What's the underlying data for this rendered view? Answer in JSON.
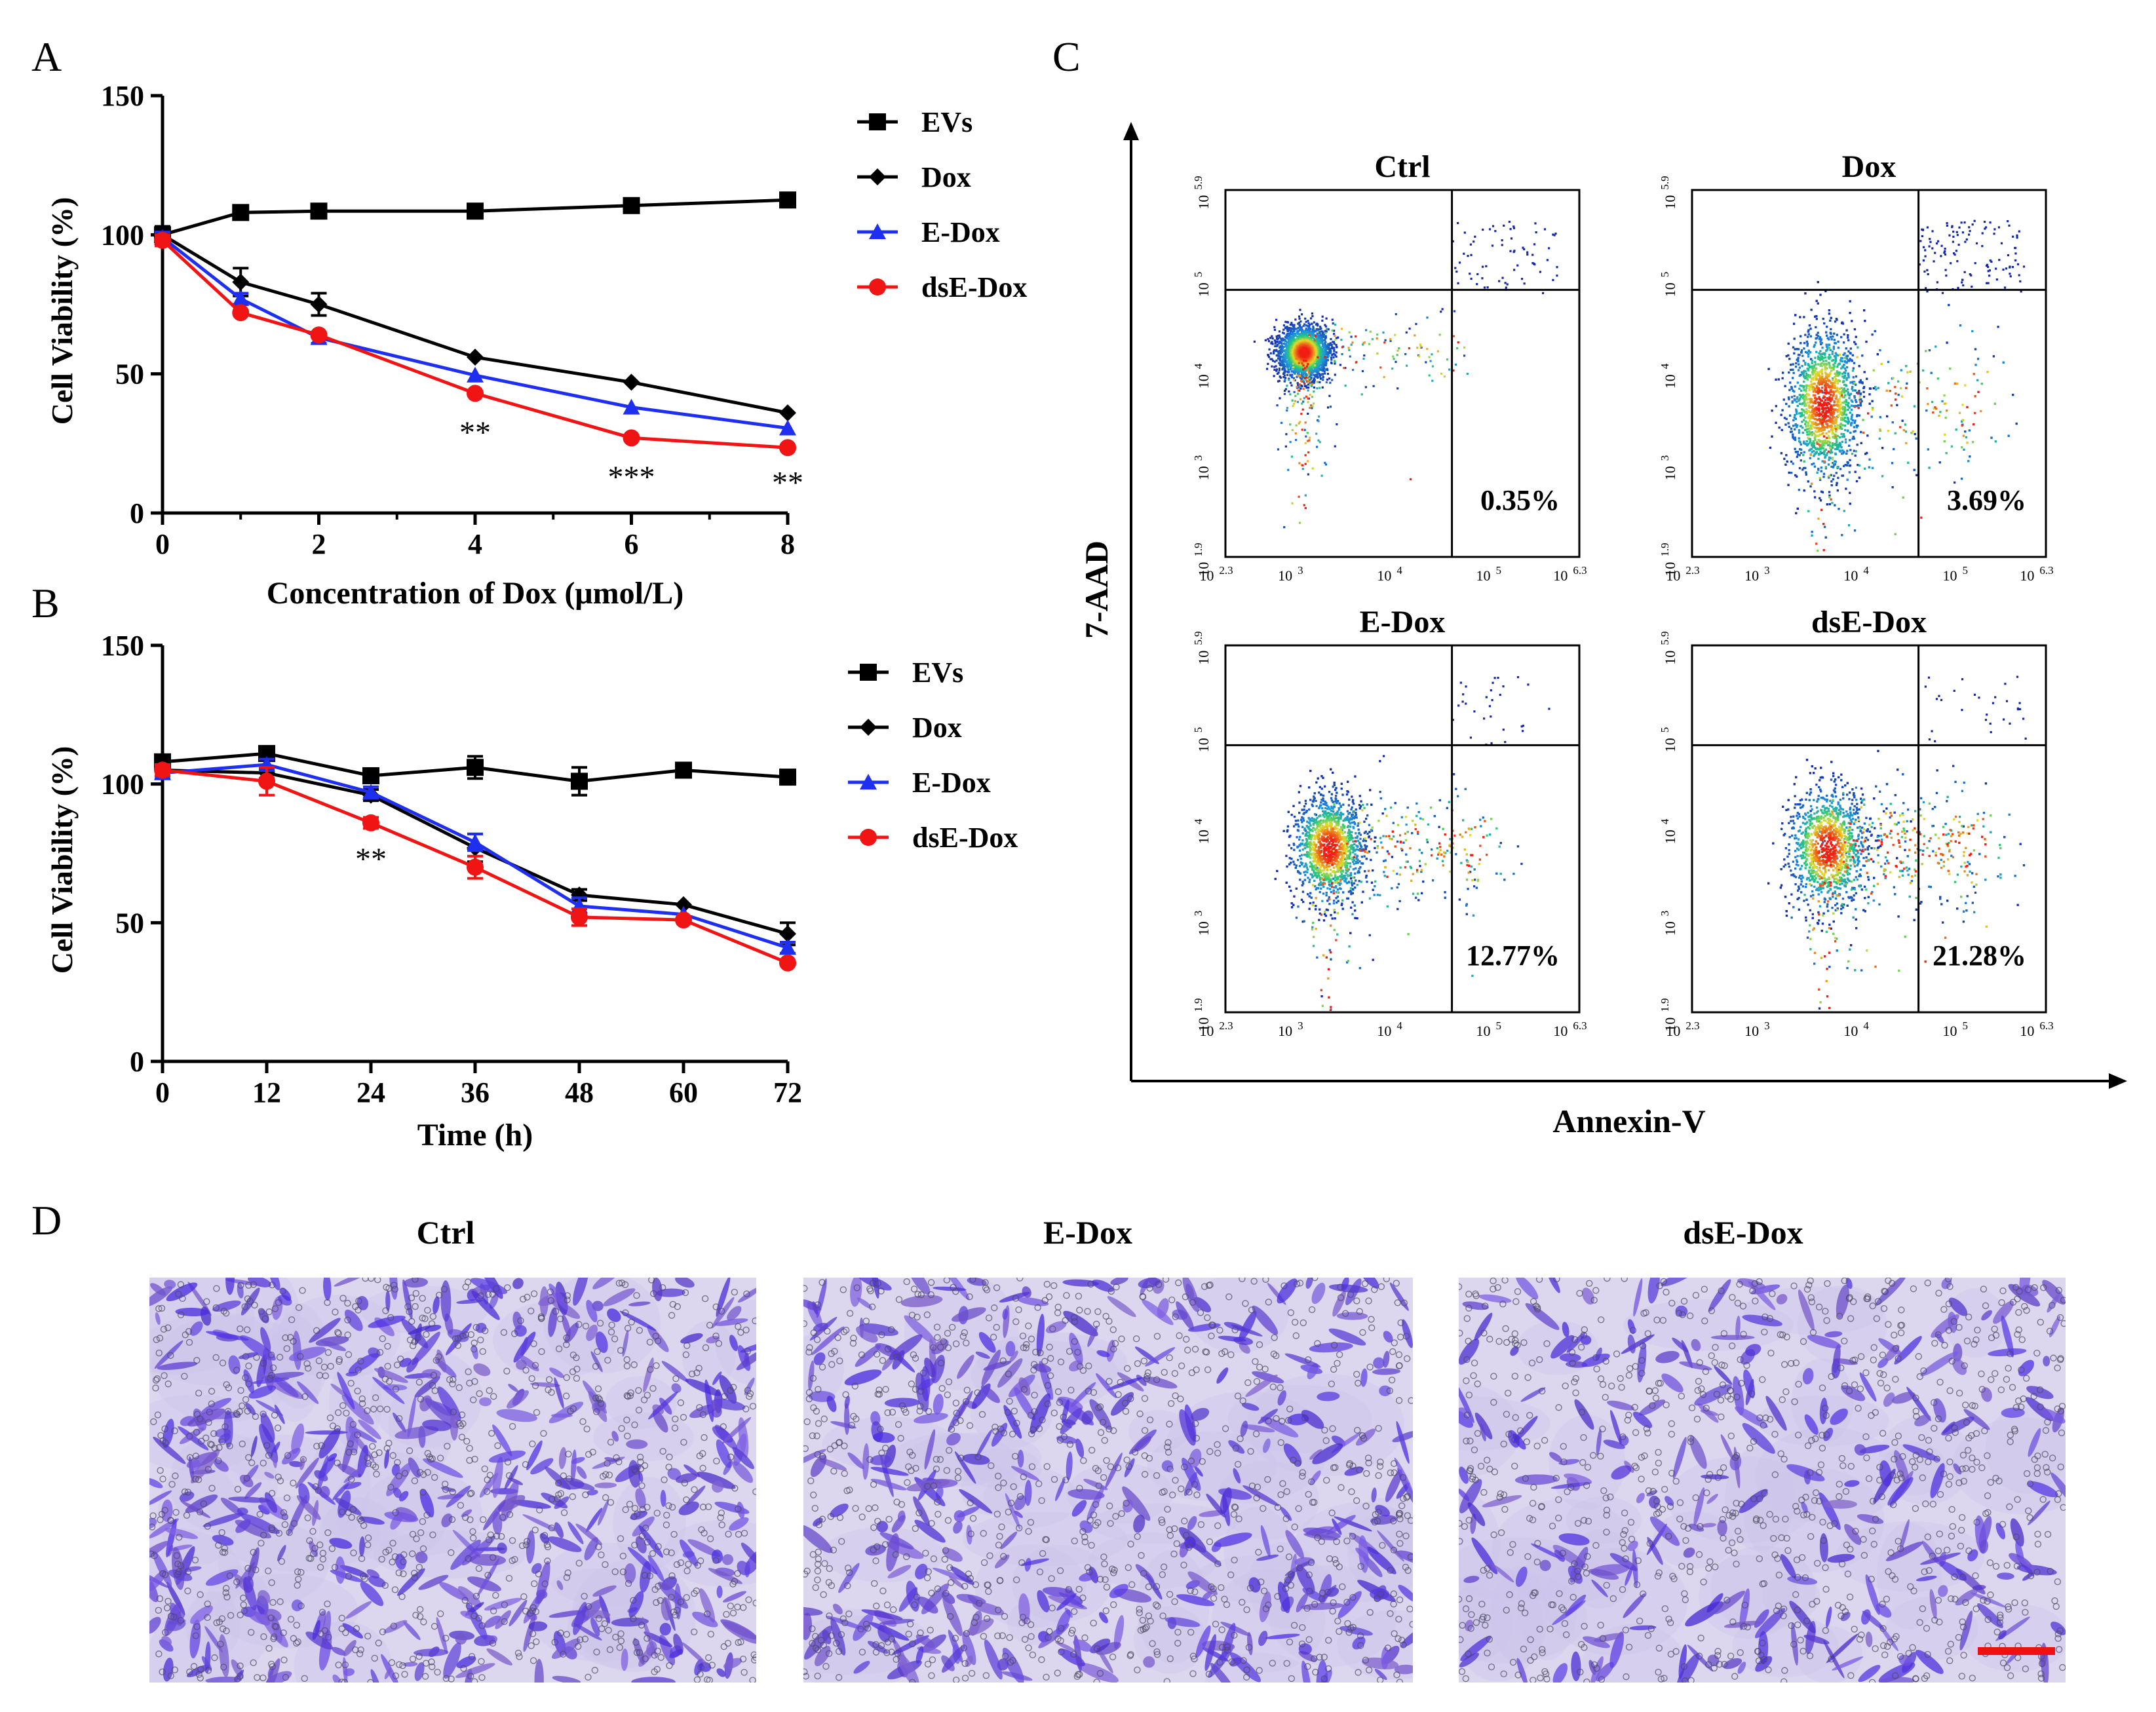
{
  "panel_letters": [
    "A",
    "B",
    "C",
    "D"
  ],
  "colors": {
    "EVs": "#000000",
    "Dox": "#000000",
    "E-Dox": "#1f2ff0",
    "dsE-Dox": "#f01414",
    "scale_bar": "#ee1111"
  },
  "chart_data": [
    {
      "panel": "A",
      "type": "line",
      "xlabel": "Concentration of Dox (μmol/L)",
      "ylabel": "Cell Viability (%)",
      "xlim": [
        0,
        8
      ],
      "ylim": [
        0,
        150
      ],
      "x": [
        0,
        1,
        2,
        4,
        6,
        8
      ],
      "x_ticks": [
        "0",
        "2",
        "4",
        "6",
        "8"
      ],
      "x_tick_values": [
        0,
        2,
        4,
        6,
        8
      ],
      "y_ticks": [
        "0",
        "50",
        "100",
        "150"
      ],
      "y_tick_values": [
        0,
        50,
        100,
        150
      ],
      "series": [
        {
          "name": "EVs",
          "marker": "square",
          "values": [
            100,
            108,
            108.5,
            108.5,
            110.5,
            112.5
          ],
          "err": [
            3,
            2,
            1,
            1,
            1,
            1
          ]
        },
        {
          "name": "Dox",
          "marker": "diamond",
          "values": [
            100,
            83,
            75,
            56,
            47,
            36
          ],
          "err": [
            3,
            5,
            4,
            1,
            1,
            1
          ]
        },
        {
          "name": "E-Dox",
          "marker": "triangle",
          "values": [
            99,
            77,
            63,
            49.5,
            38,
            30.5
          ],
          "err": [
            2,
            2,
            2,
            1,
            1,
            1
          ]
        },
        {
          "name": "dsE-Dox",
          "marker": "circle",
          "values": [
            98,
            72,
            64,
            43,
            27,
            23.5
          ],
          "err": [
            2,
            1,
            1,
            1,
            1,
            1
          ]
        }
      ],
      "annotations": [
        {
          "x": 4,
          "y": 29,
          "text": "**"
        },
        {
          "x": 6,
          "y": 13,
          "text": "***"
        },
        {
          "x": 8,
          "y": 11,
          "text": "**"
        }
      ]
    },
    {
      "panel": "B",
      "type": "line",
      "xlabel": "Time (h)",
      "ylabel": "Cell Viability (%)",
      "xlim": [
        0,
        72
      ],
      "ylim": [
        0,
        150
      ],
      "x": [
        0,
        12,
        24,
        36,
        48,
        60,
        72
      ],
      "x_ticks": [
        "0",
        "12",
        "24",
        "36",
        "48",
        "60",
        "72"
      ],
      "x_tick_values": [
        0,
        12,
        24,
        36,
        48,
        60,
        72
      ],
      "y_ticks": [
        "0",
        "50",
        "100",
        "150"
      ],
      "y_tick_values": [
        0,
        50,
        100,
        150
      ],
      "series": [
        {
          "name": "EVs",
          "marker": "square",
          "values": [
            108,
            111,
            103,
            106,
            101,
            105,
            102.5
          ],
          "err": [
            2,
            2,
            2,
            4,
            5,
            2,
            2
          ]
        },
        {
          "name": "Dox",
          "marker": "diamond",
          "values": [
            105,
            104,
            96,
            77,
            60,
            56.5,
            46
          ],
          "err": [
            2,
            2,
            2,
            5,
            2,
            1,
            4
          ]
        },
        {
          "name": "E-Dox",
          "marker": "triangle",
          "values": [
            104,
            107,
            97,
            79,
            56,
            53,
            41
          ],
          "err": [
            2,
            2,
            2,
            3,
            3,
            1,
            2
          ]
        },
        {
          "name": "dsE-Dox",
          "marker": "circle",
          "values": [
            105,
            101,
            86,
            70,
            52,
            51,
            35.5
          ],
          "err": [
            2,
            5,
            2,
            4,
            3,
            1,
            1
          ]
        }
      ],
      "annotations": [
        {
          "x": 24,
          "y": 73,
          "text": "**"
        }
      ]
    }
  ],
  "legend_items": [
    "EVs",
    "Dox",
    "E-Dox",
    "dsE-Dox"
  ],
  "flow": {
    "y_axis_label": "7-AAD",
    "x_axis_label": "Annexin-V",
    "x_tick_labels": [
      {
        "base": "10",
        "exp": "2.3"
      },
      {
        "base": "10",
        "exp": "3"
      },
      {
        "base": "10",
        "exp": "4"
      },
      {
        "base": "10",
        "exp": "5"
      },
      {
        "base": "10",
        "exp": "6.3"
      }
    ],
    "y_tick_labels": [
      {
        "base": "10",
        "exp": "1.9"
      },
      {
        "base": "10",
        "exp": "3"
      },
      {
        "base": "10",
        "exp": "4"
      },
      {
        "base": "10",
        "exp": "5"
      },
      {
        "base": "10",
        "exp": "5.9"
      }
    ],
    "plots": [
      {
        "title": "Ctrl",
        "percent": "0.35%",
        "center": [
          0.22,
          0.44
        ],
        "spread": [
          0.035,
          0.035
        ],
        "n": 2600,
        "tail": 0.04,
        "ur": 70
      },
      {
        "title": "Dox",
        "percent": "3.69%",
        "center": [
          0.37,
          0.58
        ],
        "spread": [
          0.05,
          0.1
        ],
        "n": 3400,
        "tail": 0.12,
        "ur": 120
      },
      {
        "title": "E-Dox",
        "percent": "12.77%",
        "center": [
          0.29,
          0.55
        ],
        "spread": [
          0.05,
          0.07
        ],
        "n": 3200,
        "tail": 0.18,
        "ur": 30
      },
      {
        "title": "dsE-Dox",
        "percent": "21.28%",
        "center": [
          0.38,
          0.55
        ],
        "spread": [
          0.055,
          0.08
        ],
        "n": 3600,
        "tail": 0.24,
        "ur": 30
      }
    ]
  },
  "micrographs": [
    {
      "title": "Ctrl",
      "density": 1.0
    },
    {
      "title": "E-Dox",
      "density": 0.8
    },
    {
      "title": "dsE-Dox",
      "density": 0.55
    }
  ]
}
